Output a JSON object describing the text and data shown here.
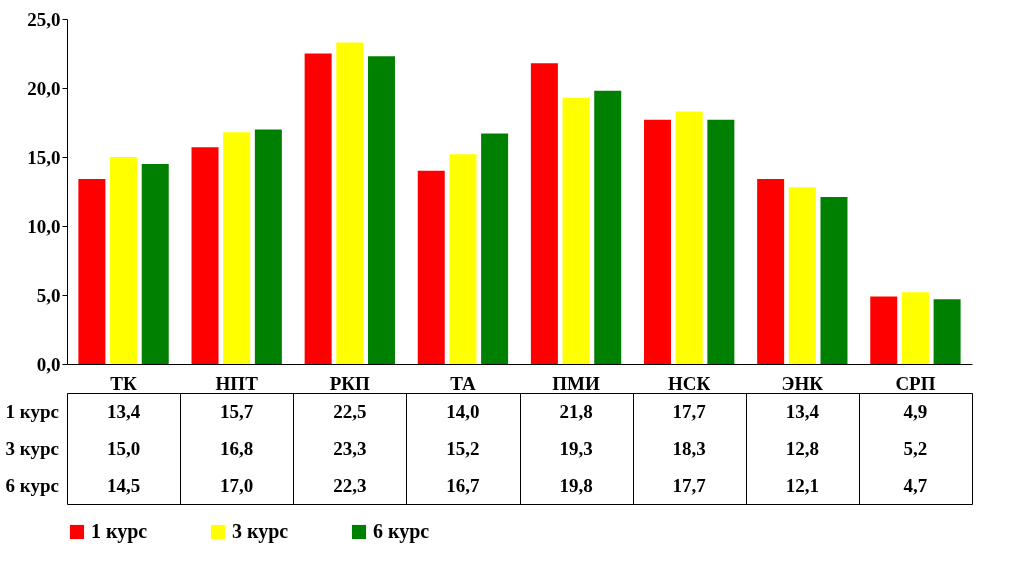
{
  "chart_data": {
    "type": "bar",
    "categories": [
      "ТК",
      "НПТ",
      "РКП",
      "ТА",
      "ПМИ",
      "НСК",
      "ЭНК",
      "СРП"
    ],
    "series": [
      {
        "name": "1 курс",
        "color": "#ff0000",
        "values": [
          13.4,
          15.7,
          22.5,
          14.0,
          21.8,
          17.7,
          13.4,
          4.9
        ],
        "value_labels": [
          "13,4",
          "15,7",
          "22,5",
          "14,0",
          "21,8",
          "17,7",
          "13,4",
          "4,9"
        ]
      },
      {
        "name": "3 курс",
        "color": "#ffff00",
        "values": [
          15.0,
          16.8,
          23.3,
          15.2,
          19.3,
          18.3,
          12.8,
          5.2
        ],
        "value_labels": [
          "15,0",
          "16,8",
          "23,3",
          "15,2",
          "19,3",
          "18,3",
          "12,8",
          "5,2"
        ]
      },
      {
        "name": "6 курс",
        "color": "#008000",
        "values": [
          14.5,
          17.0,
          22.3,
          16.7,
          19.8,
          17.7,
          12.1,
          4.7
        ],
        "value_labels": [
          "14,5",
          "17,0",
          "22,3",
          "16,7",
          "19,8",
          "17,7",
          "12,1",
          "4,7"
        ]
      }
    ],
    "ylim": [
      0,
      25
    ],
    "yticks": [
      {
        "value": 0,
        "label": "0,0"
      },
      {
        "value": 5,
        "label": "5,0"
      },
      {
        "value": 10,
        "label": "10,0"
      },
      {
        "value": 15,
        "label": "15,0"
      },
      {
        "value": 20,
        "label": "20,0"
      },
      {
        "value": 25,
        "label": "25,0"
      }
    ],
    "grid": false,
    "legend": "bottom"
  }
}
